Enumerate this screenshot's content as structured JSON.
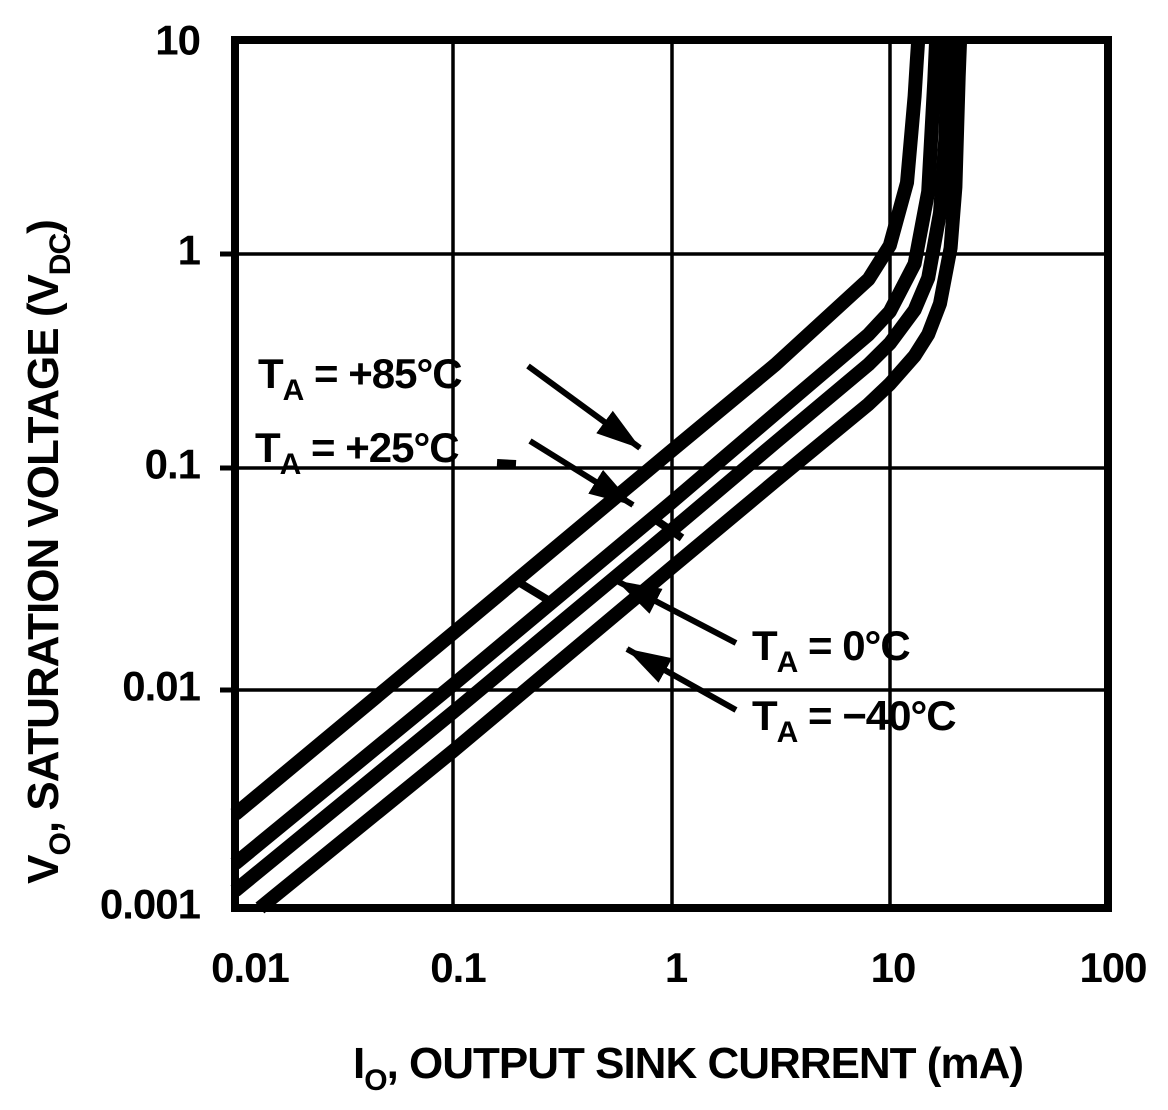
{
  "colors": {
    "ink": "#000000",
    "background": "#ffffff"
  },
  "chart_data": {
    "type": "line",
    "title": "",
    "x_scale": "log",
    "y_scale": "log",
    "xlim": [
      0.01,
      100
    ],
    "ylim": [
      0.001,
      10
    ],
    "grid": true,
    "xlabel": "IO, OUTPUT SINK CURRENT (mA)",
    "ylabel": "VO, SATURATION VOLTAGE (VDC)",
    "xlabel_parts": {
      "sym": "I",
      "sub": "O",
      "rest": ", OUTPUT SINK CURRENT (mA)"
    },
    "ylabel_parts": {
      "sym": "V",
      "sub": "O",
      "rest": ", SATURATION VOLTAGE (V",
      "sub2": "DC",
      "close": ")"
    },
    "x_ticks": [
      "0.01",
      "0.1",
      "1",
      "10",
      "100"
    ],
    "y_ticks": [
      "10",
      "1",
      "0.1",
      "0.01",
      "0.001"
    ],
    "series": [
      {
        "name": "TA = +85°C",
        "temperature_c": 85,
        "points": [
          [
            0.01,
            0.0027
          ],
          [
            0.1,
            0.0185
          ],
          [
            1,
            0.128
          ],
          [
            3,
            0.32
          ],
          [
            8,
            0.79
          ],
          [
            10,
            1.13
          ],
          [
            12,
            2.2
          ],
          [
            13,
            5.5
          ],
          [
            13.3,
            8.0
          ],
          [
            13.5,
            10
          ]
        ]
      },
      {
        "name": "TA = +25°C",
        "temperature_c": 25,
        "points": [
          [
            0.01,
            0.0016
          ],
          [
            0.1,
            0.0107
          ],
          [
            1,
            0.074
          ],
          [
            3,
            0.19
          ],
          [
            8,
            0.44
          ],
          [
            10,
            0.56
          ],
          [
            13,
            0.93
          ],
          [
            15,
            2.0
          ],
          [
            16,
            6.5
          ],
          [
            16.3,
            10
          ]
        ]
      },
      {
        "name": "TA = 0°C",
        "temperature_c": 0,
        "points": [
          [
            0.01,
            0.0012
          ],
          [
            0.1,
            0.008
          ],
          [
            1,
            0.055
          ],
          [
            3,
            0.14
          ],
          [
            8,
            0.32
          ],
          [
            10,
            0.4
          ],
          [
            13,
            0.57
          ],
          [
            15,
            0.8
          ],
          [
            17,
            1.6
          ],
          [
            18,
            3.6
          ],
          [
            18.5,
            10
          ]
        ]
      },
      {
        "name": "TA = −40°C",
        "temperature_c": -40,
        "points": [
          [
            0.013,
            0.001
          ],
          [
            0.1,
            0.0053
          ],
          [
            1,
            0.037
          ],
          [
            3,
            0.093
          ],
          [
            8,
            0.21
          ],
          [
            10,
            0.26
          ],
          [
            13,
            0.35
          ],
          [
            15,
            0.44
          ],
          [
            17,
            0.61
          ],
          [
            19,
            1.1
          ],
          [
            20,
            2.1
          ],
          [
            20.7,
            6.8
          ],
          [
            21,
            10
          ]
        ]
      }
    ],
    "annotations": [
      {
        "t": "T",
        "sub": "A",
        "rest": " = +85°C"
      },
      {
        "t": "T",
        "sub": "A",
        "rest": " = +25°C"
      },
      {
        "t": "T",
        "sub": "A",
        "rest": " = 0°C"
      },
      {
        "t": "T",
        "sub": "A",
        "rest": " = −40°C"
      }
    ]
  }
}
